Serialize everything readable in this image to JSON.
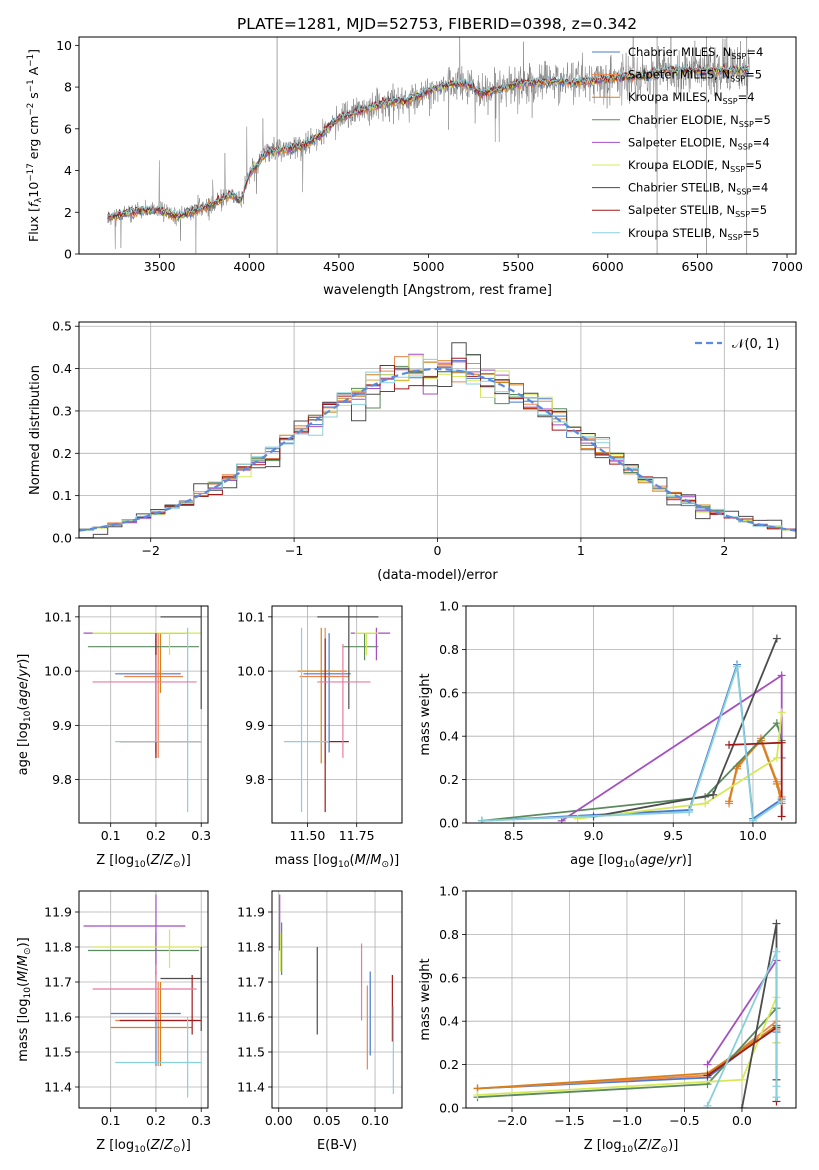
{
  "page_title": "PLATE=1281, MJD=52753, FIBERID=0398, z=0.342",
  "series": [
    {
      "name": "Chabrier MILES, N",
      "sub": "SSP",
      "eq": "=4",
      "color": "#4878d0"
    },
    {
      "name": "Salpeter MILES, N",
      "sub": "SSP",
      "eq": "=5",
      "color": "#ee854a"
    },
    {
      "name": "Kroupa MILES, N",
      "sub": "SSP",
      "eq": "=4",
      "color": "#d5811b"
    },
    {
      "name": "Chabrier ELODIE, N",
      "sub": "SSP",
      "eq": "=5",
      "color": "#5a8a5e"
    },
    {
      "name": "Salpeter ELODIE, N",
      "sub": "SSP",
      "eq": "=4",
      "color": "#a64fbf"
    },
    {
      "name": "Kroupa ELODIE, N",
      "sub": "SSP",
      "eq": "=5",
      "color": "#d6e85a"
    },
    {
      "name": "Chabrier STELIB, N",
      "sub": "SSP",
      "eq": "=4",
      "color": "#4d4d4d"
    },
    {
      "name": "Salpeter STELIB, N",
      "sub": "SSP",
      "eq": "=5",
      "color": "#a01a1a"
    },
    {
      "name": "Kroupa STELIB, N",
      "sub": "SSP",
      "eq": "=5",
      "color": "#88d0dc"
    }
  ],
  "extra_colors": {
    "pink": "#e87aa0",
    "violet": "#a020c0",
    "lime": "#c0e040",
    "cyan": "#60d0d8"
  },
  "chart_data": [
    {
      "type": "line",
      "id": "spectrum",
      "xlabel": "wavelength [Angstrom, rest frame]",
      "ylabel_parts": [
        "Flux [",
        "f",
        "λ",
        "10",
        "−17",
        " erg cm",
        "−2",
        " s",
        "−1",
        " A",
        "−1",
        "]"
      ],
      "xlim": [
        3050,
        7050
      ],
      "ylim": [
        0,
        10.4
      ],
      "xticks": [
        3500,
        4000,
        4500,
        5000,
        5500,
        6000,
        6500,
        7000
      ],
      "yticks": [
        0,
        2,
        4,
        6,
        8,
        10
      ],
      "data_color": "#7f7f7f",
      "x_range": [
        3210,
        6790
      ],
      "continuum": [
        [
          3210,
          1.75
        ],
        [
          3400,
          2.1
        ],
        [
          3500,
          2.1
        ],
        [
          3600,
          1.8
        ],
        [
          3700,
          2.1
        ],
        [
          3800,
          2.4
        ],
        [
          3900,
          2.9
        ],
        [
          3950,
          2.5
        ],
        [
          4000,
          3.8
        ],
        [
          4100,
          4.9
        ],
        [
          4200,
          5.0
        ],
        [
          4300,
          5.2
        ],
        [
          4400,
          5.7
        ],
        [
          4500,
          6.5
        ],
        [
          4600,
          6.8
        ],
        [
          4700,
          7.1
        ],
        [
          4800,
          7.3
        ],
        [
          4900,
          7.4
        ],
        [
          5000,
          7.8
        ],
        [
          5100,
          8.1
        ],
        [
          5200,
          8.2
        ],
        [
          5300,
          7.7
        ],
        [
          5400,
          7.9
        ],
        [
          5500,
          8.2
        ],
        [
          5600,
          8.2
        ],
        [
          5700,
          8.3
        ],
        [
          5800,
          8.2
        ],
        [
          5900,
          8.3
        ],
        [
          6000,
          8.4
        ],
        [
          6100,
          8.5
        ],
        [
          6200,
          8.5
        ],
        [
          6300,
          8.8
        ],
        [
          6400,
          8.8
        ],
        [
          6500,
          8.8
        ],
        [
          6600,
          8.8
        ],
        [
          6700,
          8.8
        ],
        [
          6790,
          8.8
        ]
      ]
    },
    {
      "type": "histogram",
      "id": "residuals",
      "xlabel": "(data-model)/error",
      "ylabel": "Normed distribution",
      "xlim": [
        -2.5,
        2.5
      ],
      "ylim": [
        0,
        0.51
      ],
      "xticks": [
        -2,
        -1,
        0,
        1,
        2
      ],
      "yticks": [
        0.0,
        0.1,
        0.2,
        0.3,
        0.4,
        0.5
      ],
      "bin_width": 0.1,
      "gaussian_label": "𝒩(0, 1)",
      "gaussian_color": "#5b8be0"
    },
    {
      "type": "scatter",
      "id": "age-vs-Z",
      "xlabel": "Z [log10(Z/Z☉)]",
      "ylabel": "age  [log10(age/yr)]",
      "xlim": [
        0.03,
        0.315
      ],
      "ylim": [
        9.72,
        10.12
      ],
      "xticks": [
        0.1,
        0.2,
        0.3
      ],
      "yticks": [
        9.8,
        9.9,
        10.0,
        10.1
      ],
      "points": [
        {
          "s": 0,
          "x": 0.2,
          "y": 9.995,
          "xerr": [
            0.11,
            0.255
          ],
          "yerr": [
            9.85,
            10.07
          ]
        },
        {
          "s": 1,
          "x": 0.205,
          "y": 9.99,
          "xerr": [
            0.13,
            0.26
          ],
          "yerr": [
            9.84,
            10.07
          ]
        },
        {
          "s": 2,
          "x": 0.21,
          "y": 10.07,
          "xerr": [
            0.1,
            0.265
          ],
          "yerr": [
            9.96,
            10.07
          ]
        },
        {
          "s": 3,
          "x": 0.2,
          "y": 10.045,
          "xerr": [
            0.05,
            0.295
          ],
          "yerr": [
            9.99,
            10.06
          ]
        },
        {
          "s": 4,
          "x": 0.2,
          "y": 10.07,
          "xerr": [
            0.04,
            0.27
          ],
          "yerr": [
            9.84,
            10.07
          ]
        },
        {
          "s": 5,
          "x": 0.23,
          "y": 10.07,
          "xerr": [
            0.06,
            0.3
          ],
          "yerr": [
            10.03,
            10.07
          ]
        },
        {
          "s": 6,
          "x": 0.3,
          "y": 10.1,
          "xerr": [
            0.21,
            0.3
          ],
          "yerr": [
            9.93,
            10.12
          ]
        },
        {
          "s": 7,
          "x": 0.2,
          "y": 9.87,
          "xerr": [
            0.12,
            0.3
          ],
          "yerr": [
            9.84,
            10.07
          ]
        },
        {
          "s": 8,
          "x": 0.27,
          "y": 9.87,
          "xerr": [
            0.11,
            0.3
          ],
          "yerr": [
            9.74,
            10.08
          ]
        },
        {
          "c": "pink",
          "x": 0.2,
          "y": 9.98,
          "xerr": [
            0.06,
            0.29
          ],
          "yerr": [
            9.87,
            10.03
          ]
        }
      ]
    },
    {
      "type": "scatter",
      "id": "age-vs-mass",
      "xlabel": "mass [log10(M/M☉)]",
      "ylabel": "",
      "xlim": [
        11.32,
        11.98
      ],
      "ylim": [
        9.72,
        10.12
      ],
      "xticks": [
        11.5,
        11.75
      ],
      "xticklabels": [
        "11.50",
        "11.75"
      ],
      "yticks": [
        9.8,
        9.9,
        10.0,
        10.1
      ],
      "points": [
        {
          "s": 0,
          "x": 11.61,
          "y": 9.995,
          "xerr": [
            11.48,
            11.72
          ],
          "yerr": [
            9.85,
            10.07
          ]
        },
        {
          "s": 1,
          "x": 11.59,
          "y": 9.99,
          "xerr": [
            11.46,
            11.71
          ],
          "yerr": [
            9.83,
            10.08
          ]
        },
        {
          "s": 2,
          "x": 11.57,
          "y": 10.0,
          "xerr": [
            11.45,
            11.7
          ],
          "yerr": [
            9.83,
            10.08
          ]
        },
        {
          "s": 3,
          "x": 11.79,
          "y": 10.045,
          "xerr": [
            11.68,
            11.86
          ],
          "yerr": [
            10.02,
            10.07
          ]
        },
        {
          "s": 4,
          "x": 11.85,
          "y": 10.07,
          "xerr": [
            11.72,
            11.92
          ],
          "yerr": [
            10.02,
            10.08
          ]
        },
        {
          "s": 5,
          "x": 11.8,
          "y": 10.07,
          "xerr": [
            11.74,
            11.86
          ],
          "yerr": [
            10.03,
            10.07
          ]
        },
        {
          "s": 6,
          "x": 11.71,
          "y": 10.1,
          "xerr": [
            11.55,
            11.86
          ],
          "yerr": [
            9.93,
            10.12
          ]
        },
        {
          "s": 7,
          "x": 11.59,
          "y": 9.87,
          "xerr": [
            11.58,
            11.71
          ],
          "yerr": [
            9.74,
            10.06
          ]
        },
        {
          "s": 8,
          "x": 11.47,
          "y": 9.87,
          "xerr": [
            11.38,
            11.61
          ],
          "yerr": [
            9.74,
            10.08
          ]
        },
        {
          "c": "pink",
          "x": 11.68,
          "y": 9.98,
          "xerr": [
            11.55,
            11.82
          ],
          "yerr": [
            9.84,
            10.05
          ]
        }
      ]
    },
    {
      "type": "line",
      "id": "weight-vs-age",
      "xlabel": "age  [log10(age/yr)]",
      "ylabel": "mass weight",
      "xlim": [
        8.2,
        10.27
      ],
      "ylim": [
        0,
        1.0
      ],
      "xticks": [
        8.5,
        9.0,
        9.5,
        10.0
      ],
      "yticks": [
        0.0,
        0.2,
        0.4,
        0.6,
        0.8,
        1.0
      ],
      "series_points": [
        {
          "s": 0,
          "x": [
            8.3,
            9.6,
            9.9,
            10.0,
            10.18
          ],
          "y": [
            0.01,
            0.06,
            0.73,
            0.02,
            0.11
          ]
        },
        {
          "s": 1,
          "x": [
            9.85,
            9.9,
            10.05,
            10.15,
            10.18
          ],
          "y": [
            0.09,
            0.25,
            0.39,
            0.19,
            0.12
          ]
        },
        {
          "s": 2,
          "x": [
            9.85,
            9.9,
            10.05,
            10.15,
            10.18
          ],
          "y": [
            0.1,
            0.26,
            0.38,
            0.18,
            0.09
          ]
        },
        {
          "s": 3,
          "x": [
            8.3,
            9.7,
            10.15,
            10.18
          ],
          "y": [
            0.01,
            0.12,
            0.46,
            0.38
          ]
        },
        {
          "s": 4,
          "x": [
            8.8,
            10.18,
            10.18
          ],
          "y": [
            0.01,
            0.68,
            0.3
          ]
        },
        {
          "s": 5,
          "x": [
            8.9,
            9.7,
            10.15,
            10.18
          ],
          "y": [
            0.02,
            0.09,
            0.3,
            0.51
          ]
        },
        {
          "s": 6,
          "x": [
            9.0,
            9.75,
            10.15
          ],
          "y": [
            0.03,
            0.13,
            0.85
          ]
        },
        {
          "s": 7,
          "x": [
            9.85,
            10.18,
            10.18
          ],
          "y": [
            0.36,
            0.37,
            0.03
          ]
        },
        {
          "s": 8,
          "x": [
            8.3,
            9.6,
            9.9,
            10.0,
            10.18
          ],
          "y": [
            0.01,
            0.05,
            0.72,
            0.01,
            0.1
          ]
        }
      ]
    },
    {
      "type": "scatter",
      "id": "mass-vs-Z",
      "xlabel": "Z [log10(Z/Z☉)]",
      "ylabel": "mass [log10(M/M☉)]",
      "xlim": [
        0.03,
        0.315
      ],
      "ylim": [
        11.34,
        11.96
      ],
      "xticks": [
        0.1,
        0.2,
        0.3
      ],
      "yticks": [
        11.4,
        11.5,
        11.6,
        11.7,
        11.8,
        11.9
      ],
      "points": [
        {
          "s": 0,
          "x": 0.2,
          "y": 11.61,
          "xerr": [
            0.1,
            0.255
          ],
          "yerr": [
            11.46,
            11.73
          ]
        },
        {
          "s": 1,
          "x": 0.205,
          "y": 11.59,
          "xerr": [
            0.11,
            0.29
          ],
          "yerr": [
            11.46,
            11.7
          ]
        },
        {
          "s": 2,
          "x": 0.21,
          "y": 11.57,
          "xerr": [
            0.1,
            0.28
          ],
          "yerr": [
            11.46,
            11.7
          ]
        },
        {
          "s": 3,
          "x": 0.2,
          "y": 11.79,
          "xerr": [
            0.05,
            0.295
          ],
          "yerr": [
            11.72,
            11.84
          ]
        },
        {
          "s": 4,
          "x": 0.2,
          "y": 11.86,
          "xerr": [
            0.04,
            0.265
          ],
          "yerr": [
            11.72,
            11.95
          ]
        },
        {
          "s": 5,
          "x": 0.23,
          "y": 11.8,
          "xerr": [
            0.06,
            0.3
          ],
          "yerr": [
            11.74,
            11.85
          ]
        },
        {
          "s": 6,
          "x": 0.3,
          "y": 11.71,
          "xerr": [
            0.21,
            0.3
          ],
          "yerr": [
            11.56,
            11.8
          ]
        },
        {
          "s": 7,
          "x": 0.28,
          "y": 11.59,
          "xerr": [
            0.12,
            0.3
          ],
          "yerr": [
            11.55,
            11.72
          ]
        },
        {
          "s": 8,
          "x": 0.27,
          "y": 11.47,
          "xerr": [
            0.11,
            0.3
          ],
          "yerr": [
            11.37,
            11.6
          ]
        },
        {
          "c": "pink",
          "x": 0.2,
          "y": 11.68,
          "xerr": [
            0.06,
            0.29
          ],
          "yerr": [
            11.6,
            11.75
          ]
        }
      ]
    },
    {
      "type": "scatter",
      "id": "mass-vs-ebv",
      "xlabel": "E(B-V)",
      "ylabel": "",
      "xlim": [
        -0.007,
        0.128
      ],
      "ylim": [
        11.34,
        11.96
      ],
      "xticks": [
        0.0,
        0.05,
        0.1
      ],
      "xticklabels": [
        "0.00",
        "0.05",
        "0.10"
      ],
      "yticks": [
        11.4,
        11.5,
        11.6,
        11.7,
        11.8,
        11.9
      ],
      "points": [
        {
          "s": 0,
          "x": 0.095,
          "y": 11.61,
          "yerr": [
            11.49,
            11.73
          ]
        },
        {
          "s": 1,
          "x": 0.092,
          "y": 11.59,
          "yerr": [
            11.45,
            11.69
          ]
        },
        {
          "s": 3,
          "x": 0.003,
          "y": 11.79,
          "yerr": [
            11.72,
            11.87
          ]
        },
        {
          "s": 4,
          "x": 0.001,
          "y": 11.86,
          "yerr": [
            11.79,
            11.95
          ]
        },
        {
          "s": 5,
          "x": 0.002,
          "y": 11.8,
          "yerr": [
            11.73,
            11.84
          ]
        },
        {
          "s": 6,
          "x": 0.04,
          "y": 11.71,
          "yerr": [
            11.55,
            11.8
          ]
        },
        {
          "s": 7,
          "x": 0.118,
          "y": 11.59,
          "yerr": [
            11.53,
            11.72
          ]
        },
        {
          "s": 8,
          "x": 0.119,
          "y": 11.47,
          "yerr": [
            11.38,
            11.63
          ]
        },
        {
          "c": "pink",
          "x": 0.086,
          "y": 11.68,
          "yerr": [
            11.59,
            11.81
          ]
        }
      ]
    },
    {
      "type": "line",
      "id": "weight-vs-Z",
      "xlabel": "Z [log10(Z/Z☉)]",
      "ylabel": "mass weight",
      "xlim": [
        -2.4,
        0.47
      ],
      "ylim": [
        0,
        1.0
      ],
      "xticks": [
        -2.0,
        -1.5,
        -1.0,
        -0.5,
        0.0
      ],
      "yticks": [
        0.0,
        0.2,
        0.4,
        0.6,
        0.8,
        1.0
      ],
      "series_points": [
        {
          "s": 0,
          "x": [
            -2.3,
            -0.3,
            0.3,
            0.3
          ],
          "y": [
            0.09,
            0.14,
            0.38,
            0.35
          ]
        },
        {
          "s": 1,
          "x": [
            -2.3,
            -0.3,
            0.3,
            0.3
          ],
          "y": [
            0.09,
            0.15,
            0.4,
            0.36
          ]
        },
        {
          "s": 2,
          "x": [
            -2.3,
            -0.3,
            0.3
          ],
          "y": [
            0.09,
            0.16,
            0.38
          ]
        },
        {
          "s": 3,
          "x": [
            -2.3,
            -0.3,
            0.3,
            0.3
          ],
          "y": [
            0.05,
            0.11,
            0.46,
            0.38
          ]
        },
        {
          "s": 4,
          "x": [
            -0.3,
            0.3,
            0.3
          ],
          "y": [
            0.2,
            0.68,
            0.3
          ]
        },
        {
          "s": 5,
          "x": [
            -2.3,
            0.0,
            0.3,
            0.3
          ],
          "y": [
            0.06,
            0.13,
            0.51,
            0.3
          ]
        },
        {
          "s": 6,
          "x": [
            0.0,
            0.3,
            0.3
          ],
          "y": [
            0.0,
            0.85,
            0.13
          ]
        },
        {
          "s": 7,
          "x": [
            -0.3,
            0.3,
            0.3
          ],
          "y": [
            0.15,
            0.37,
            0.03
          ]
        },
        {
          "s": 8,
          "x": [
            -0.3,
            0.3,
            0.3,
            0.3
          ],
          "y": [
            0.01,
            0.72,
            0.1,
            0.05
          ]
        }
      ]
    }
  ]
}
